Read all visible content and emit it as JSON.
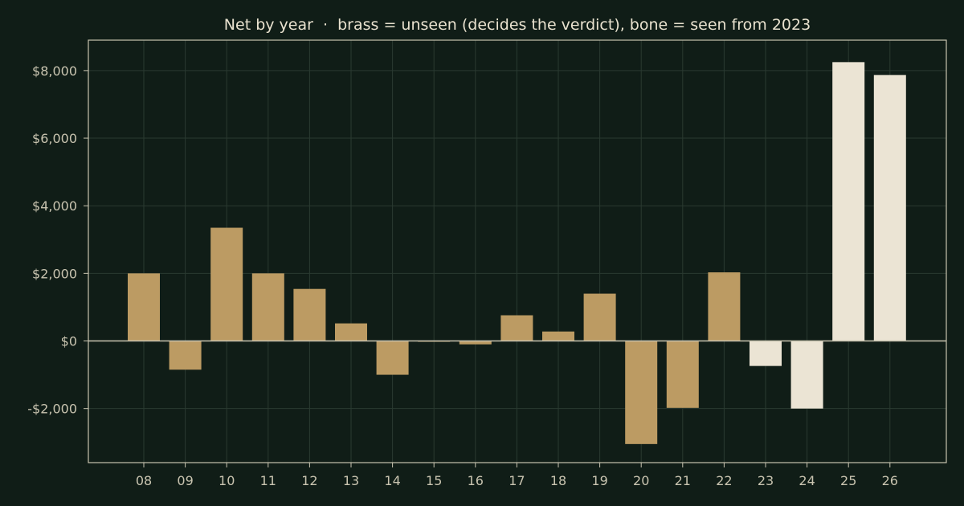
{
  "chart_data": {
    "type": "bar",
    "title": "Net by year  ·  brass = unseen (decides the verdict), bone = seen from 2023",
    "xlabel": "",
    "ylabel": "",
    "categories": [
      "08",
      "09",
      "10",
      "11",
      "12",
      "13",
      "14",
      "15",
      "16",
      "17",
      "18",
      "19",
      "20",
      "21",
      "22",
      "23",
      "24",
      "25",
      "26"
    ],
    "values": [
      2000,
      -850,
      3350,
      2000,
      1540,
      520,
      -1000,
      -20,
      -100,
      760,
      280,
      1400,
      -3050,
      -1980,
      2030,
      -740,
      -2000,
      8250,
      7870
    ],
    "series_groups": {
      "unseen": [
        "08",
        "09",
        "10",
        "11",
        "12",
        "13",
        "14",
        "15",
        "16",
        "17",
        "18",
        "19",
        "20",
        "21",
        "22"
      ],
      "seen": [
        "23",
        "24",
        "25",
        "26"
      ]
    },
    "ylim": [
      -3600,
      8900
    ],
    "yticks": [
      -2000,
      0,
      2000,
      4000,
      6000,
      8000
    ],
    "ytick_labels": [
      "-$2,000",
      "$0",
      "$2,000",
      "$4,000",
      "$6,000",
      "$8,000"
    ],
    "grid": true,
    "colors": {
      "background": "#101d17",
      "unseen": "#bc9b63",
      "seen": "#ebe4d4",
      "axis": "#c9c4b0",
      "grid": "#2a3a31",
      "zero_line": "#c9c4b0",
      "text": "#e9e2cf"
    }
  }
}
